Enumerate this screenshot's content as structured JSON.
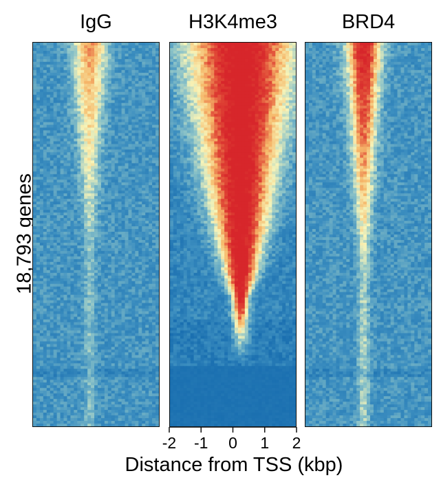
{
  "chart_data": {
    "type": "heatmap",
    "panels": [
      {
        "name": "IgG",
        "profile": "weak_tss_stripe",
        "peak_intensity": 0.55
      },
      {
        "name": "H3K4me3",
        "profile": "strong_tss_cone",
        "peak_intensity": 1.0
      },
      {
        "name": "BRD4",
        "profile": "moderate_tss_stripe",
        "peak_intensity": 0.85
      }
    ],
    "ylabel": "18,793 genes",
    "rows": 18793,
    "xlabel": "Distance from TSS (kbp)",
    "x_ticks": [
      -2,
      -1,
      0,
      1,
      2
    ],
    "x_tick_labels": [
      "-2",
      "-1",
      "0",
      "1",
      "2"
    ],
    "xlim": [
      -2,
      2
    ],
    "colormap": [
      "#1a6fb0",
      "#3d8fc0",
      "#8cc3c8",
      "#f7f4b8",
      "#f6b96b",
      "#e04836",
      "#d7262b"
    ]
  }
}
